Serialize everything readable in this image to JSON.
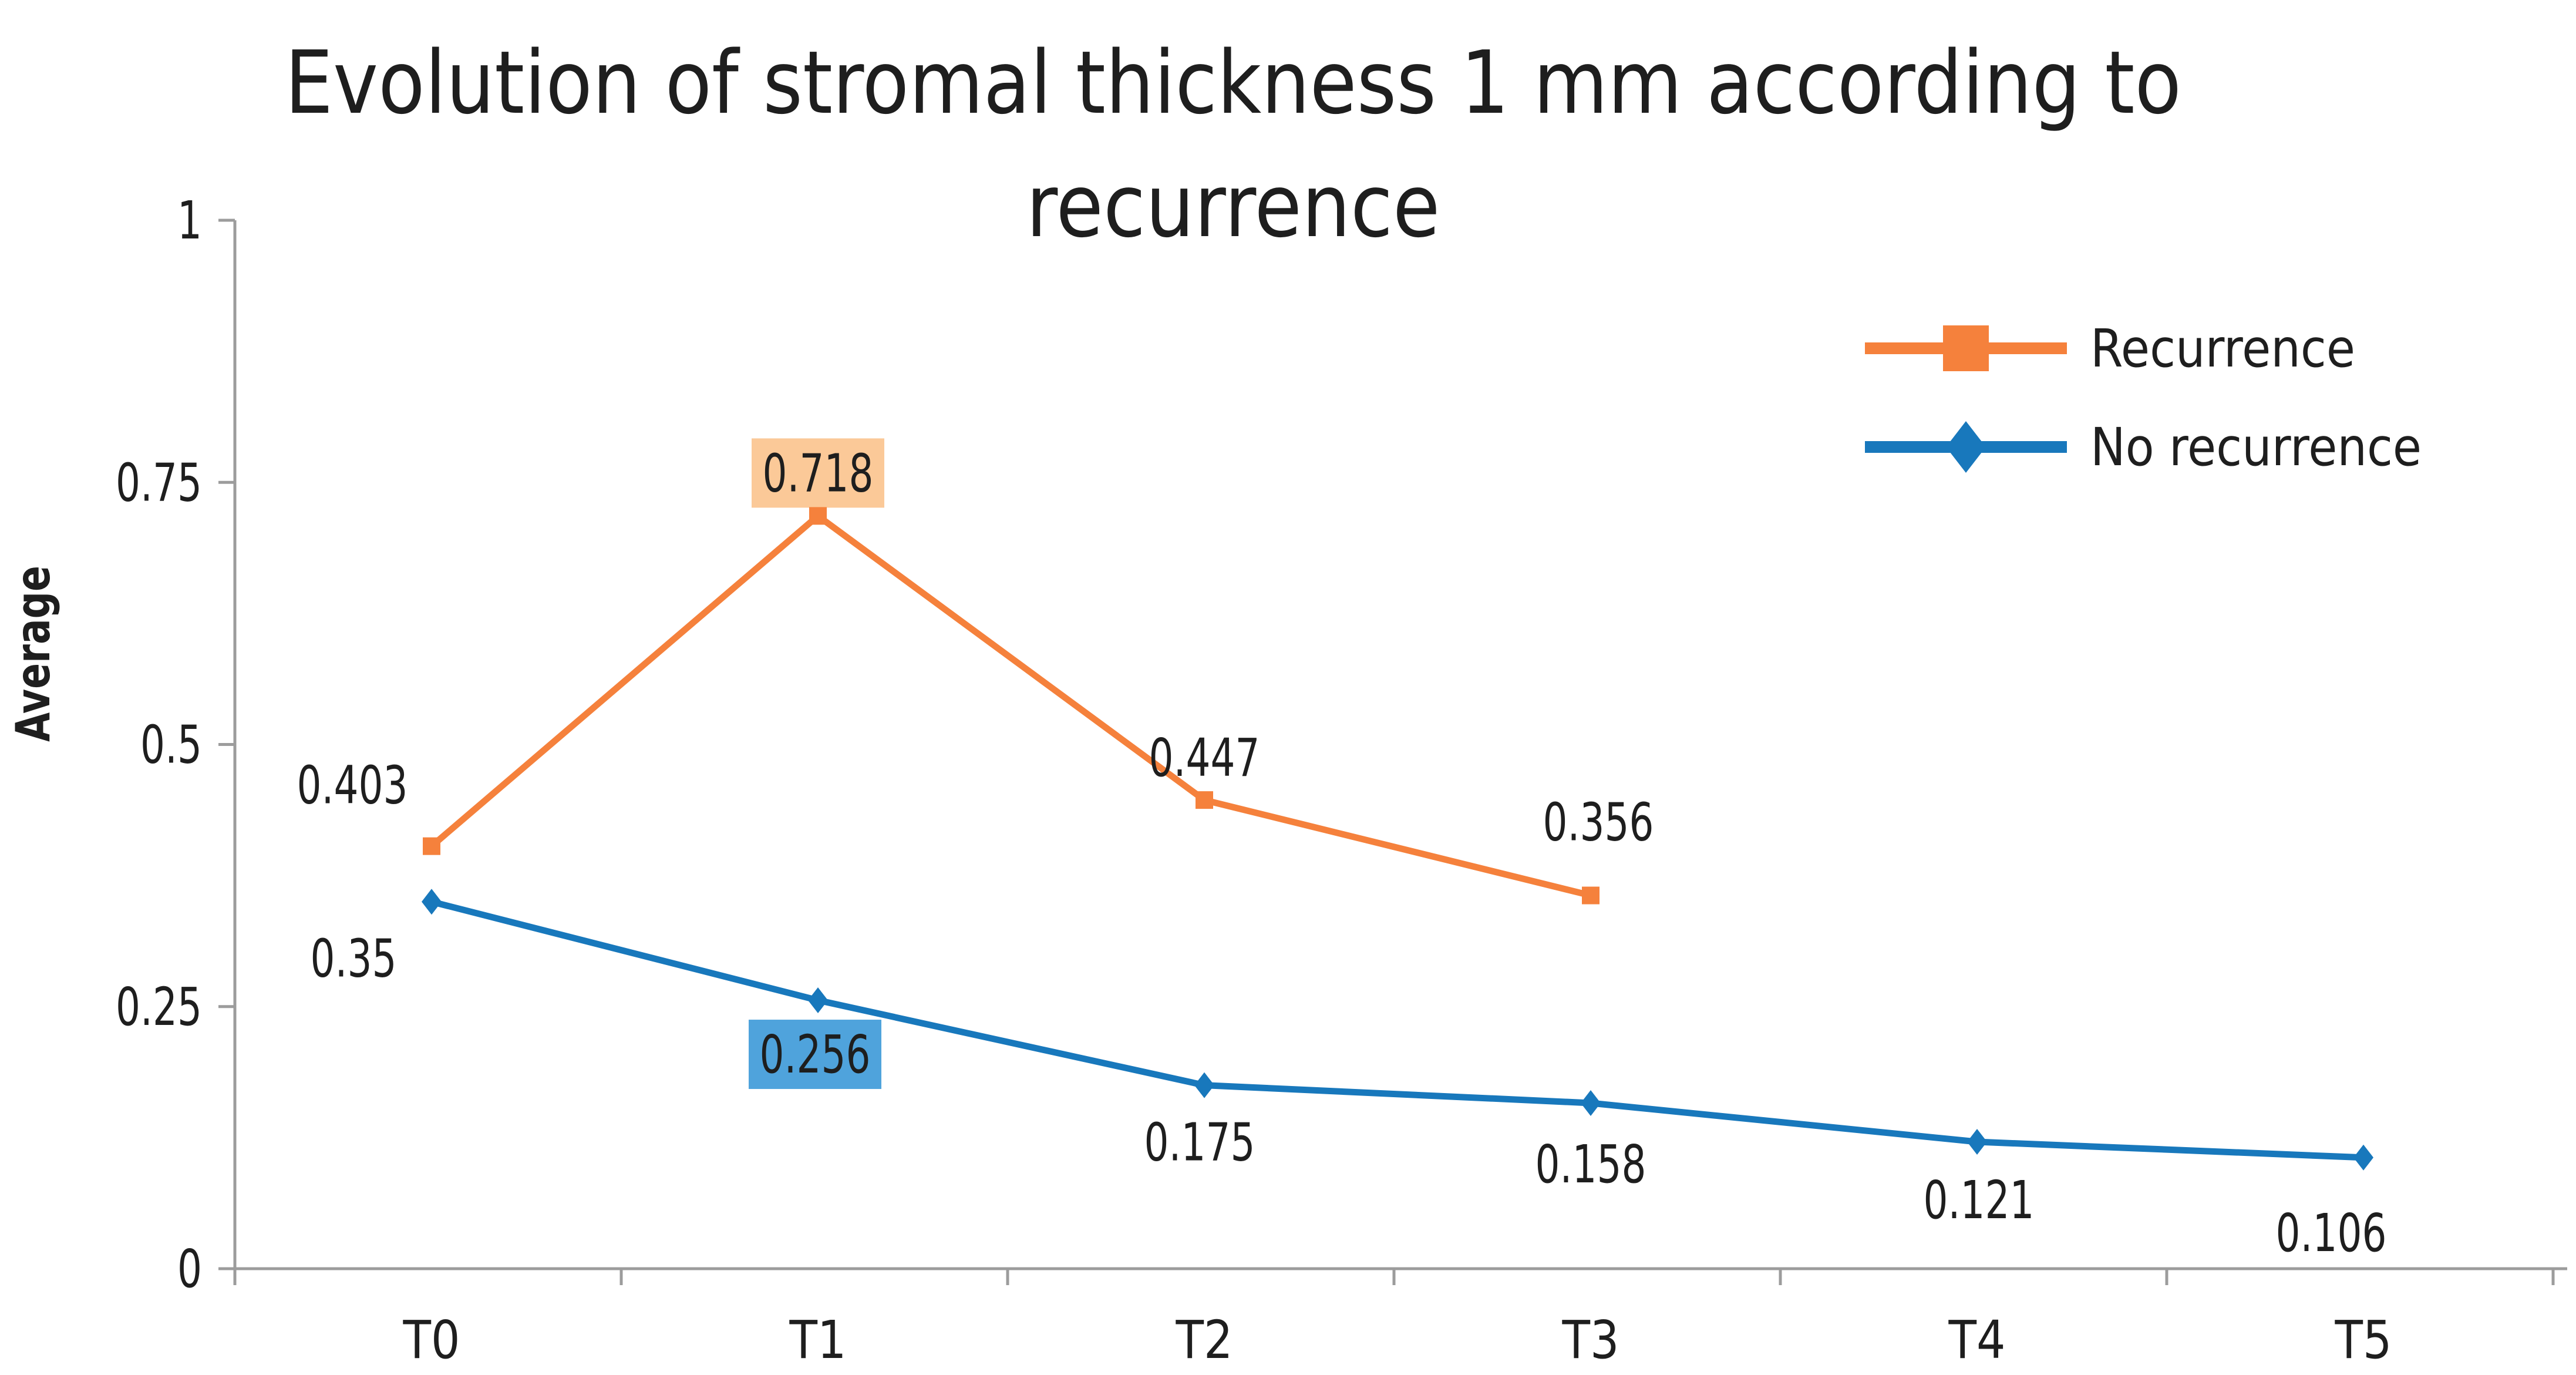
{
  "title": {
    "line1": "Evolution of stromal thickness 1 mm according to",
    "line2": "recurrence",
    "full": "Evolution of stromal thickness 1 mm according to recurrence"
  },
  "y_axis": {
    "label": "Average",
    "tick_labels": [
      "0",
      "0.25",
      "0.5",
      "0.75",
      "1"
    ],
    "tick_values": [
      0,
      0.25,
      0.5,
      0.75,
      1
    ]
  },
  "x_axis": {
    "categories": [
      "T0",
      "T1",
      "T2",
      "T3",
      "T4",
      "T5"
    ]
  },
  "legend": {
    "position": "top-right",
    "items": [
      {
        "label": "Recurrence",
        "marker": "square",
        "color": "#F5813C"
      },
      {
        "label": "No recurrence",
        "marker": "diamond",
        "color": "#1878BC"
      }
    ]
  },
  "chart_data": {
    "type": "line",
    "title": "Evolution of stromal thickness 1 mm according to recurrence",
    "xlabel": "",
    "ylabel": "Average",
    "ylim": [
      0,
      1
    ],
    "yticks": [
      0,
      0.25,
      0.5,
      0.75,
      1
    ],
    "grid": false,
    "legend_position": "top-right",
    "categories": [
      "T0",
      "T1",
      "T2",
      "T3",
      "T4",
      "T5"
    ],
    "series": [
      {
        "name": "Recurrence",
        "color": "#F5813C",
        "marker": "square",
        "values": [
          0.403,
          0.718,
          0.447,
          0.356,
          null,
          null
        ],
        "data_labels": [
          {
            "text": "0.403",
            "highlighted": false
          },
          {
            "text": "0.718",
            "highlighted": true,
            "highlight_color": "#FBC998"
          },
          {
            "text": "0.447",
            "highlighted": false
          },
          {
            "text": "0.356",
            "highlighted": false
          }
        ]
      },
      {
        "name": "No recurrence",
        "color": "#1878BC",
        "marker": "diamond",
        "values": [
          0.35,
          0.256,
          0.175,
          0.158,
          0.121,
          0.106
        ],
        "data_labels": [
          {
            "text": "0.35",
            "highlighted": false
          },
          {
            "text": "0.256",
            "highlighted": true,
            "highlight_color": "#4FA3DC"
          },
          {
            "text": "0.175",
            "highlighted": false
          },
          {
            "text": "0.158",
            "highlighted": false
          },
          {
            "text": "0.121",
            "highlighted": false
          },
          {
            "text": "0.106",
            "highlighted": false
          }
        ]
      }
    ]
  },
  "colors": {
    "background": "#FFFFFF",
    "axis": "#9C9C9C",
    "text": "#1E1E1E",
    "recurrence": "#F5813C",
    "no_recurrence": "#1878BC",
    "recurrence_highlight_bg": "#FBC998",
    "no_recurrence_highlight_bg": "#4FA3DC"
  }
}
